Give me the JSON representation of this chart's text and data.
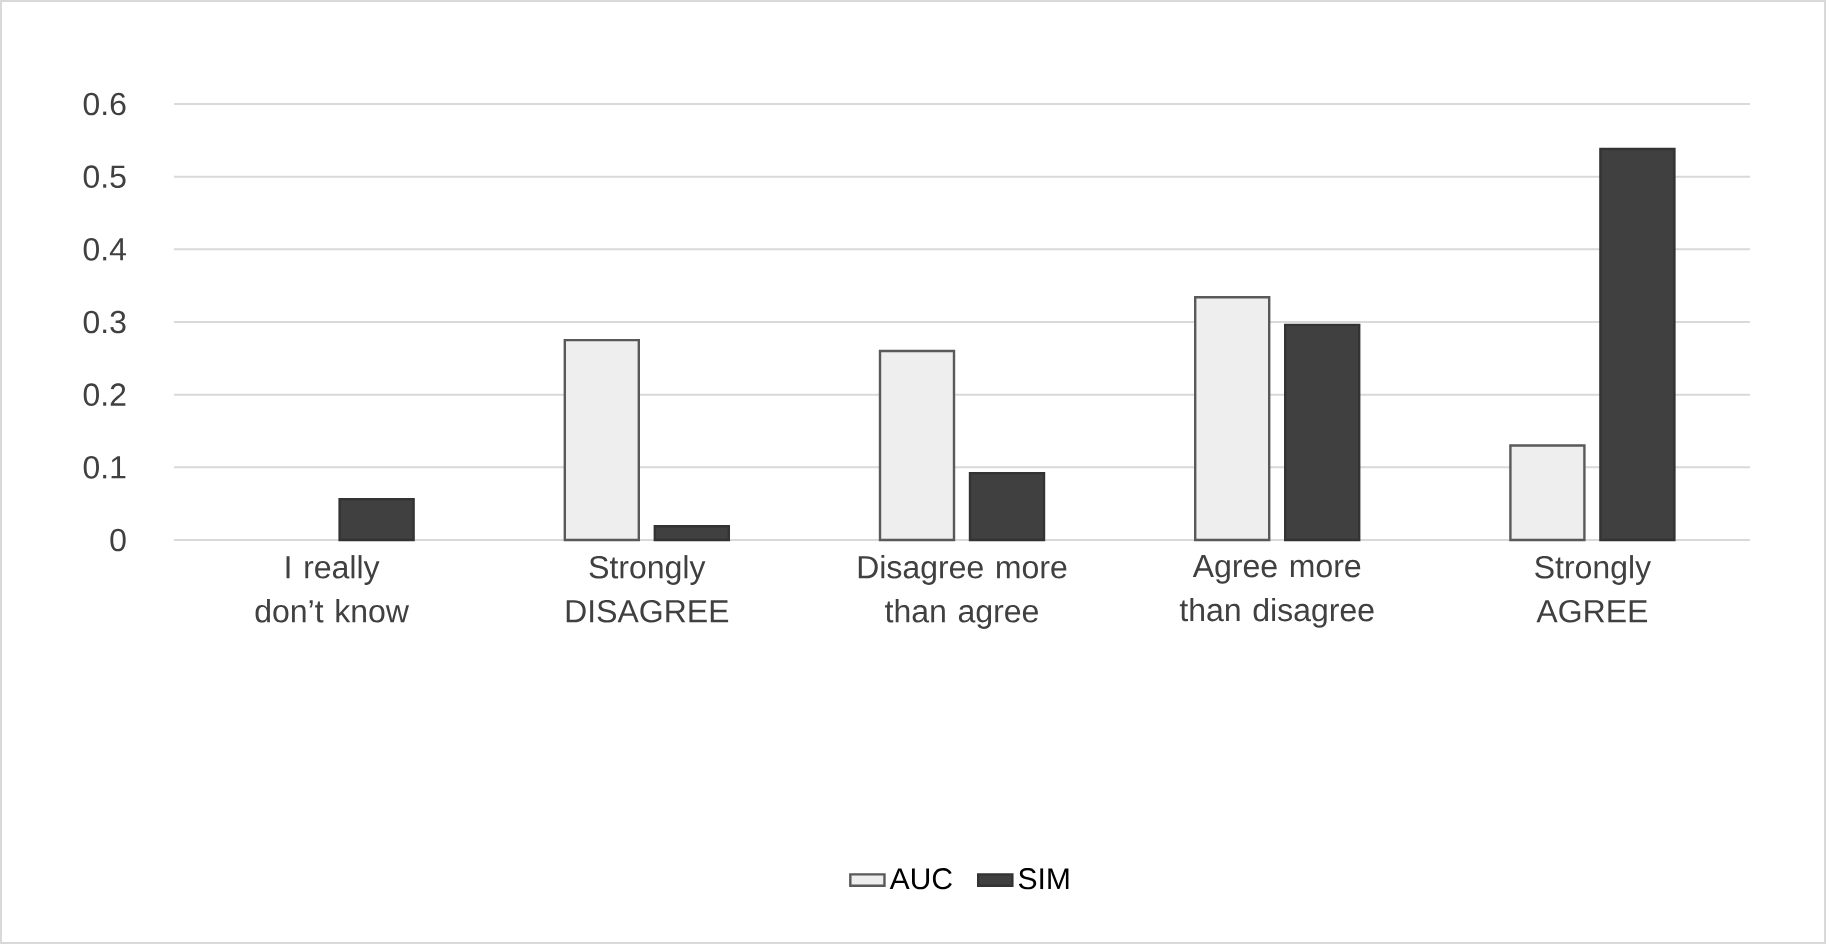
{
  "chart_data": {
    "type": "bar",
    "categories": [
      "I really don’t know",
      "Strongly DISAGREE",
      "Disagree more than agree",
      "Agree more than disagree",
      "Strongly AGREE"
    ],
    "series": [
      {
        "name": "AUC",
        "color": "#eeeeee",
        "values": [
          null,
          0.275,
          0.26,
          0.334,
          0.13
        ]
      },
      {
        "name": "SIM",
        "color": "#404040",
        "values": [
          0.056,
          0.019,
          0.092,
          0.296,
          0.538
        ]
      }
    ],
    "ylim": [
      0,
      0.6
    ],
    "yticks": [
      0,
      0.1,
      0.2,
      0.3,
      0.4,
      0.5,
      0.6
    ],
    "grid": "y",
    "legend": "bottom"
  }
}
